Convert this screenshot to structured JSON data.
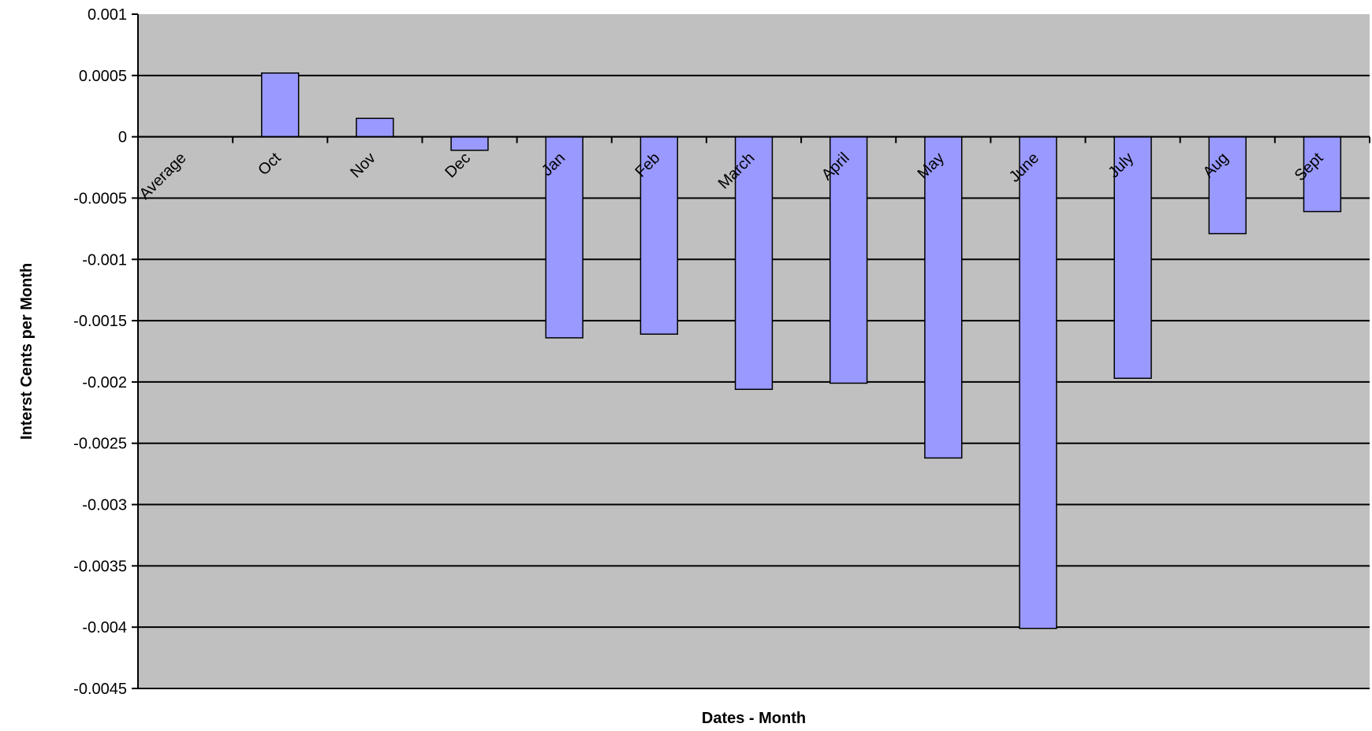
{
  "chart_data": {
    "type": "bar",
    "xlabel": "Dates - Month",
    "ylabel": "Interst Cents per Month",
    "ylim": [
      -0.0045,
      0.001
    ],
    "yticks": [
      "0.001",
      "0.0005",
      "0",
      "-0.0005",
      "-0.001",
      "-0.0015",
      "-0.002",
      "-0.0025",
      "-0.003",
      "-0.0035",
      "-0.004",
      "-0.0045"
    ],
    "categories": [
      "Average",
      "Oct",
      "Nov",
      "Dec",
      "Jan",
      "Feb",
      "March",
      "April",
      "May",
      "June",
      "July",
      "Aug",
      "Sept"
    ],
    "values": [
      0,
      0.00052,
      0.00015,
      -0.00011,
      -0.00164,
      -0.00161,
      -0.00206,
      -0.00201,
      -0.00262,
      -0.00401,
      -0.00197,
      -0.00079,
      -0.00061
    ],
    "grid": true,
    "legend": "none",
    "colors": {
      "plot_background": "#c0c0c0",
      "bar_fill": "#9999ff",
      "bar_stroke": "#000000",
      "gridline": "#000000"
    }
  }
}
